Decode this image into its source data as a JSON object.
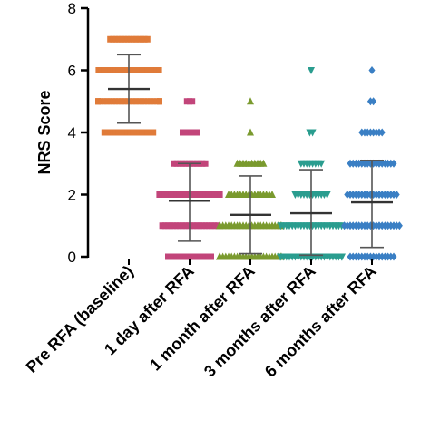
{
  "chart_data": {
    "type": "scatter",
    "title": "",
    "xlabel": "",
    "ylabel": "NRS Score",
    "ylim": [
      0,
      8
    ],
    "yticks": [
      0,
      2,
      4,
      6,
      8
    ],
    "grid": false,
    "categories": [
      "Pre RFA (baseline)",
      "1 day after RFA",
      "1 month after RFA",
      "3 months after RFA",
      "6 months after RFA"
    ],
    "groups": [
      {
        "category": "Pre RFA (baseline)",
        "color": "#e07b39",
        "marker": "square",
        "mean": 5.4,
        "sd_low": 4.3,
        "sd_high": 6.5,
        "points": [
          {
            "y": 7,
            "count": 14
          },
          {
            "y": 6,
            "count": 22
          },
          {
            "y": 5,
            "count": 26
          },
          {
            "y": 4,
            "count": 18
          }
        ]
      },
      {
        "category": "1 day after RFA",
        "color": "#c2457a",
        "marker": "square",
        "mean": 1.8,
        "sd_low": 0.5,
        "sd_high": 3.0,
        "points": [
          {
            "y": 5,
            "count": 3
          },
          {
            "y": 4,
            "count": 6
          },
          {
            "y": 3,
            "count": 12
          },
          {
            "y": 2,
            "count": 22
          },
          {
            "y": 1,
            "count": 20
          },
          {
            "y": 0,
            "count": 16
          }
        ]
      },
      {
        "category": "1 month after RFA",
        "color": "#7a9a2e",
        "marker": "triangle",
        "mean": 1.35,
        "sd_low": 0.1,
        "sd_high": 2.6,
        "points": [
          {
            "y": 5,
            "count": 1
          },
          {
            "y": 4,
            "count": 1
          },
          {
            "y": 3,
            "count": 10
          },
          {
            "y": 2,
            "count": 16
          },
          {
            "y": 1,
            "count": 24
          },
          {
            "y": 0,
            "count": 26
          }
        ]
      },
      {
        "category": "3 months after RFA",
        "color": "#2a9d8f",
        "marker": "triangle-down",
        "mean": 1.4,
        "sd_low": 0.05,
        "sd_high": 2.8,
        "points": [
          {
            "y": 6,
            "count": 1
          },
          {
            "y": 4,
            "count": 2
          },
          {
            "y": 3,
            "count": 8
          },
          {
            "y": 2,
            "count": 12
          },
          {
            "y": 1,
            "count": 22
          },
          {
            "y": 0,
            "count": 24
          }
        ]
      },
      {
        "category": "6 months after RFA",
        "color": "#3a7fc4",
        "marker": "diamond",
        "mean": 1.75,
        "sd_low": 0.3,
        "sd_high": 3.1,
        "points": [
          {
            "y": 6,
            "count": 1
          },
          {
            "y": 5,
            "count": 2
          },
          {
            "y": 4,
            "count": 8
          },
          {
            "y": 3,
            "count": 16
          },
          {
            "y": 2,
            "count": 18
          },
          {
            "y": 1,
            "count": 20
          },
          {
            "y": 0,
            "count": 16
          }
        ]
      }
    ]
  }
}
